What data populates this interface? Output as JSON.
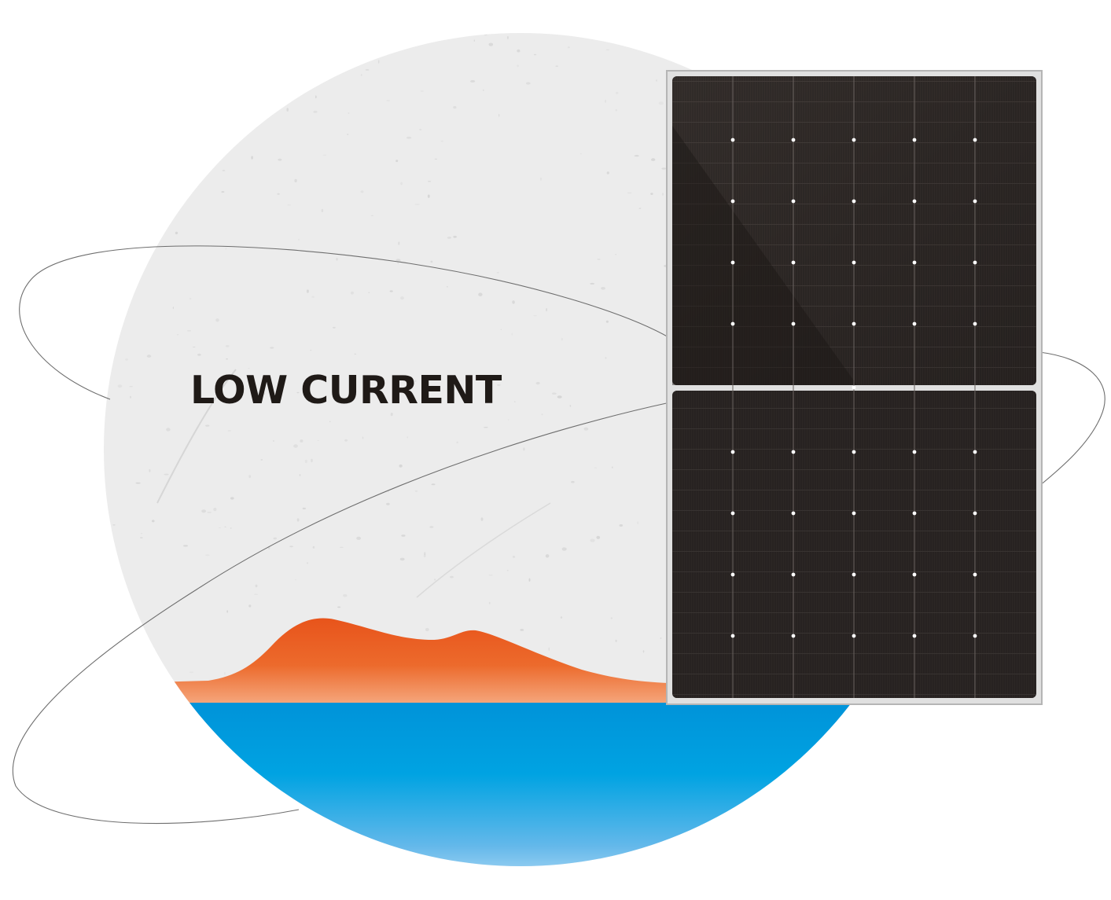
{
  "headline": "LOW CURRENT",
  "colors": {
    "background": "#ffffff",
    "stone": "#ededed",
    "stone_speckle": "#c9c9c9",
    "mountain_top": "#e8541b",
    "mountain_bottom": "#f5a67c",
    "water_top": "#0093d9",
    "water_bottom": "#d9ecfb",
    "panel_frame": "#bdbdbd",
    "panel_cell": "#2a2523",
    "orbit_line": "#6e6e6e",
    "headline": "#1f1a17"
  },
  "icons": [
    "solar-panel-icon",
    "orbit-ring",
    "mountain-graphic",
    "water-graphic",
    "stone-globe"
  ]
}
